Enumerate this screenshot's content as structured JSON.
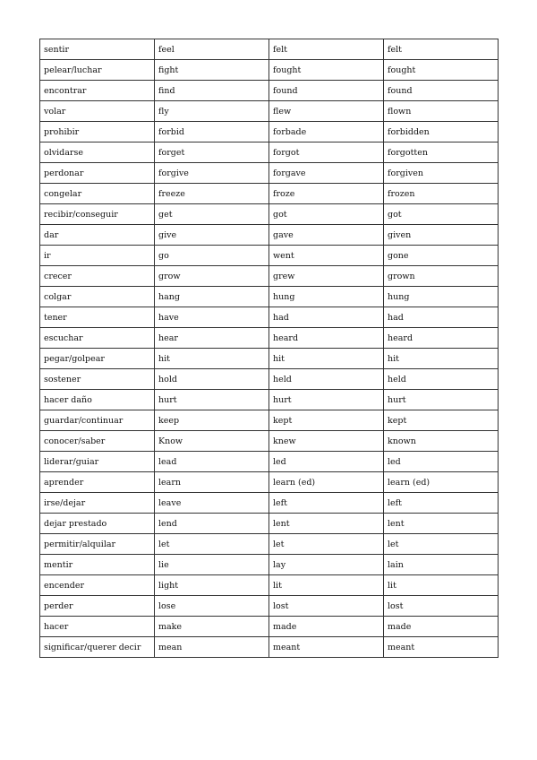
{
  "rows": [
    [
      "sentir",
      "feel",
      "felt",
      "felt"
    ],
    [
      "pelear/luchar",
      "fight",
      "fought",
      "fought"
    ],
    [
      "encontrar",
      "find",
      "found",
      "found"
    ],
    [
      "volar",
      "fly",
      "flew",
      "flown"
    ],
    [
      "prohibir",
      "forbid",
      "forbade",
      "forbidden"
    ],
    [
      "olvidarse",
      "forget",
      "forgot",
      "forgotten"
    ],
    [
      "perdonar",
      "forgive",
      "forgave",
      "forgiven"
    ],
    [
      "congelar",
      "freeze",
      "froze",
      "frozen"
    ],
    [
      "recibir/conseguir",
      "get",
      "got",
      "got"
    ],
    [
      "dar",
      "give",
      "gave",
      "given"
    ],
    [
      "ir",
      "go",
      "went",
      "gone"
    ],
    [
      "crecer",
      "grow",
      "grew",
      "grown"
    ],
    [
      "colgar",
      "hang",
      "hung",
      "hung"
    ],
    [
      "tener",
      "have",
      "had",
      "had"
    ],
    [
      "escuchar",
      "hear",
      "heard",
      "heard"
    ],
    [
      "pegar/golpear",
      "hit",
      "hit",
      "hit"
    ],
    [
      "sostener",
      "hold",
      "held",
      "held"
    ],
    [
      "hacer daño",
      "hurt",
      "hurt",
      "hurt"
    ],
    [
      "guardar/continuar",
      "keep",
      "kept",
      "kept"
    ],
    [
      "conocer/saber",
      "Know",
      "knew",
      "known"
    ],
    [
      "liderar/guiar",
      "lead",
      "led",
      "led"
    ],
    [
      "aprender",
      "learn",
      "learn (ed)",
      "learn (ed)"
    ],
    [
      "irse/dejar",
      "leave",
      "left",
      "left"
    ],
    [
      "dejar prestado",
      "lend",
      "lent",
      "lent"
    ],
    [
      "permitir/alquilar",
      "let",
      "let",
      "let"
    ],
    [
      "mentir",
      "lie",
      "lay",
      "lain"
    ],
    [
      "encender",
      "light",
      "lit",
      "lit"
    ],
    [
      "perder",
      "lose",
      "lost",
      "lost"
    ],
    [
      "hacer",
      "make",
      "made",
      "made"
    ],
    [
      "significar/querer decir",
      "mean",
      "meant",
      "meant"
    ]
  ]
}
